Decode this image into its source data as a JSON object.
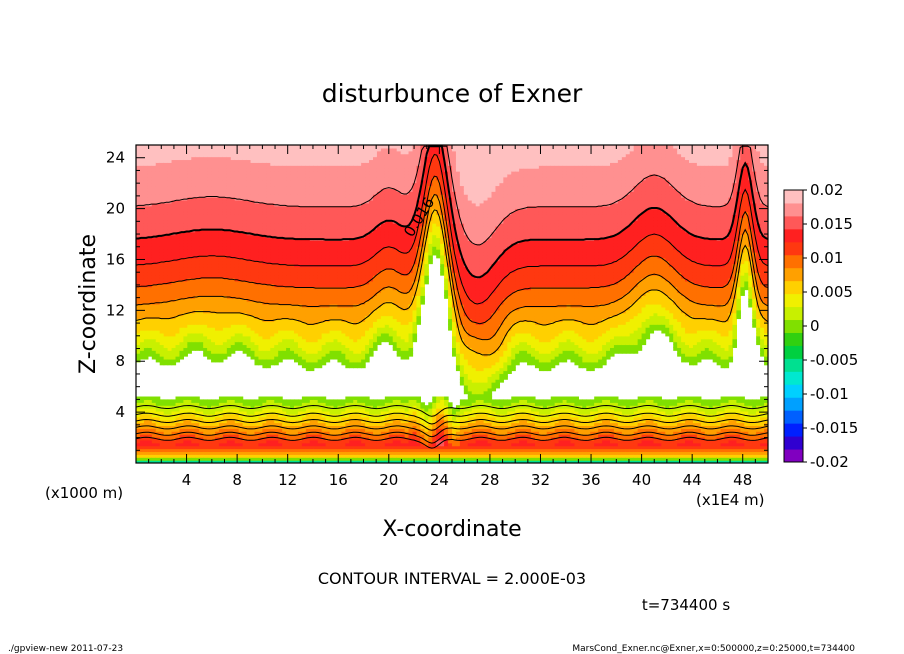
{
  "chart_data": {
    "type": "heatmap",
    "title": "disturbunce of Exner",
    "xlabel": "X-coordinate",
    "ylabel": "Z-coordinate",
    "x_unit_left": "(x1000 m)",
    "x_unit_right": "(x1E4 m)",
    "xlim": [
      0,
      50
    ],
    "ylim": [
      0,
      25
    ],
    "x_ticks": [
      "4",
      "8",
      "12",
      "16",
      "20",
      "24",
      "28",
      "32",
      "36",
      "40",
      "44",
      "48"
    ],
    "y_ticks": [
      "4",
      "8",
      "12",
      "16",
      "20",
      "24"
    ],
    "colorbar": {
      "labels": [
        "0.02",
        "0.015",
        "0.01",
        "0.005",
        "0",
        "-0.005",
        "-0.01",
        "-0.015",
        "-0.02"
      ],
      "levels": [
        -0.02,
        -0.018,
        -0.016,
        -0.014,
        -0.012,
        -0.01,
        -0.008,
        -0.006,
        -0.004,
        -0.002,
        0,
        0.002,
        0.004,
        0.006,
        0.008,
        0.01,
        0.012,
        0.014,
        0.016,
        0.018,
        0.02
      ],
      "colors": [
        "#8000c0",
        "#3000d0",
        "#0020ff",
        "#0060ff",
        "#00a0ff",
        "#00d0ff",
        "#00e8d0",
        "#00e090",
        "#00d040",
        "#30d010",
        "#80e000",
        "#c8f000",
        "#f0f000",
        "#ffd000",
        "#ffa000",
        "#ff7000",
        "#ff3810",
        "#ff2020",
        "#ff5858",
        "#ff9090",
        "#ffc0c0"
      ]
    },
    "contour_label": "0.016",
    "contour_interval": "CONTOUR INTERVAL = 2.000E-03",
    "time": "t=734400 s"
  },
  "footer": {
    "left": "./gpview-new   2011-07-23",
    "right": "MarsCond_Exner.nc@Exner,x=0:500000,z=0:25000,t=734400"
  }
}
